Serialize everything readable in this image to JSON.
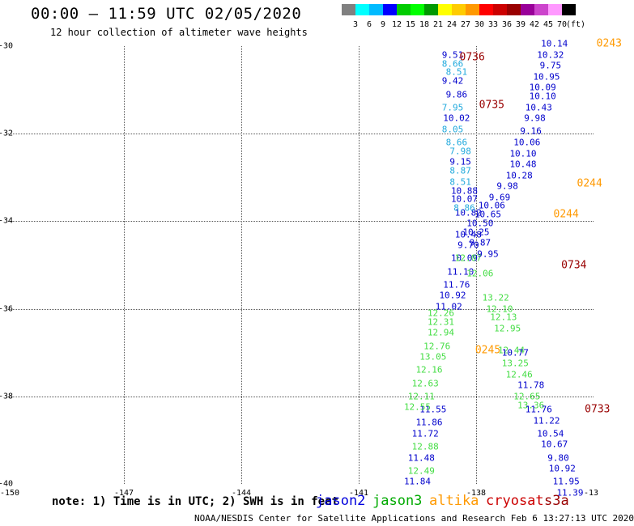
{
  "header": {
    "title": "00:00 – 11:59 UTC 02/05/2020",
    "subtitle": "12 hour collection of altimeter wave heights"
  },
  "color_scale": {
    "colors": [
      "#808080",
      "#00ffff",
      "#00bbff",
      "#0000ff",
      "#00cc00",
      "#00ff00",
      "#009900",
      "#ffff00",
      "#ffcc00",
      "#ff9900",
      "#ff0000",
      "#cc0000",
      "#990000",
      "#990099",
      "#cc44cc",
      "#ff99ff",
      "#000000"
    ],
    "labels": [
      "3",
      "6",
      "9",
      "12",
      "15",
      "18",
      "21",
      "24",
      "27",
      "30",
      "33",
      "36",
      "39",
      "42",
      "45",
      "70",
      "(ft)"
    ]
  },
  "map": {
    "lat_labels": [
      "-30",
      "-32",
      "-34",
      "-36",
      "-38",
      "-40"
    ],
    "lon_labels": [
      "-150",
      "-147",
      "-144",
      "-141",
      "-138",
      "-13"
    ]
  },
  "chart_data": {
    "type": "scatter",
    "xlabel": "",
    "ylabel": "",
    "xlim": [
      -150,
      -135
    ],
    "ylim": [
      -40,
      -30
    ],
    "series": [
      {
        "name": "jason2",
        "color": "#0000cc",
        "points": [
          {
            "x": -138.6,
            "y": -30.2,
            "v": "9.51"
          },
          {
            "x": -138.6,
            "y": -30.8,
            "v": "9.42"
          },
          {
            "x": -138.5,
            "y": -31.1,
            "v": "9.86"
          },
          {
            "x": -138.5,
            "y": -31.65,
            "v": "10.02"
          },
          {
            "x": -138.4,
            "y": -32.65,
            "v": "9.15"
          },
          {
            "x": -138.3,
            "y": -33.3,
            "v": "10.88"
          },
          {
            "x": -138.3,
            "y": -33.5,
            "v": "10.07"
          },
          {
            "x": -138.2,
            "y": -33.8,
            "v": "10.82"
          },
          {
            "x": -138.2,
            "y": -34.3,
            "v": "10.48"
          },
          {
            "x": -138.2,
            "y": -34.55,
            "v": "9.70"
          },
          {
            "x": -138.3,
            "y": -34.85,
            "v": "10.09"
          },
          {
            "x": -138.4,
            "y": -35.15,
            "v": "11.10"
          },
          {
            "x": -138.5,
            "y": -35.45,
            "v": "11.76"
          },
          {
            "x": -138.6,
            "y": -35.7,
            "v": "10.92"
          },
          {
            "x": -138.7,
            "y": -35.95,
            "v": "11.02"
          },
          {
            "x": -139.1,
            "y": -38.3,
            "v": "11.55"
          },
          {
            "x": -139.2,
            "y": -38.6,
            "v": "11.86"
          },
          {
            "x": -139.3,
            "y": -38.85,
            "v": "11.72"
          },
          {
            "x": -139.4,
            "y": -39.4,
            "v": "11.48"
          },
          {
            "x": -139.5,
            "y": -39.95,
            "v": "11.84"
          }
        ]
      },
      {
        "name": "jason3",
        "color": "#44dd44",
        "points": [
          {
            "x": -138.2,
            "y": -34.85,
            "v": "12.07"
          },
          {
            "x": -137.9,
            "y": -35.2,
            "v": "12.06"
          },
          {
            "x": -137.5,
            "y": -35.75,
            "v": "13.22"
          },
          {
            "x": -137.4,
            "y": -36.0,
            "v": "12.10"
          },
          {
            "x": -137.3,
            "y": -36.2,
            "v": "12.13"
          },
          {
            "x": -137.2,
            "y": -36.45,
            "v": "12.95"
          },
          {
            "x": -137.1,
            "y": -36.95,
            "v": "12.44"
          },
          {
            "x": -137.0,
            "y": -37.25,
            "v": "13.25"
          },
          {
            "x": -136.9,
            "y": -37.5,
            "v": "12.46"
          },
          {
            "x": -136.7,
            "y": -38.0,
            "v": "12.65"
          },
          {
            "x": -136.6,
            "y": -38.2,
            "v": "13.36"
          },
          {
            "x": -138.9,
            "y": -36.1,
            "v": "12.26"
          },
          {
            "x": -138.9,
            "y": -36.3,
            "v": "12.31"
          },
          {
            "x": -138.9,
            "y": -36.55,
            "v": "12.94"
          },
          {
            "x": -139.0,
            "y": -36.85,
            "v": "12.76"
          },
          {
            "x": -139.1,
            "y": -37.1,
            "v": "13.05"
          },
          {
            "x": -139.2,
            "y": -37.4,
            "v": "12.16"
          },
          {
            "x": -139.3,
            "y": -37.7,
            "v": "12.63"
          },
          {
            "x": -139.4,
            "y": -38.0,
            "v": "12.11"
          },
          {
            "x": -139.5,
            "y": -38.25,
            "v": "12.55"
          },
          {
            "x": -139.3,
            "y": -39.15,
            "v": "12.88"
          },
          {
            "x": -139.4,
            "y": -39.7,
            "v": "12.49"
          }
        ]
      },
      {
        "name": "altika",
        "color": "#22aadd",
        "points": [
          {
            "x": -138.6,
            "y": -30.4,
            "v": "8.66"
          },
          {
            "x": -138.5,
            "y": -30.6,
            "v": "8.51"
          },
          {
            "x": -138.6,
            "y": -31.4,
            "v": "7.95"
          },
          {
            "x": -138.6,
            "y": -31.9,
            "v": "8.05"
          },
          {
            "x": -138.5,
            "y": -32.2,
            "v": "8.66"
          },
          {
            "x": -138.4,
            "y": -32.4,
            "v": "7.98"
          },
          {
            "x": -138.4,
            "y": -32.85,
            "v": "8.87"
          },
          {
            "x": -138.4,
            "y": -33.1,
            "v": "8.51"
          },
          {
            "x": -138.3,
            "y": -33.7,
            "v": "8.86"
          }
        ]
      },
      {
        "name": "cryosat",
        "color": "#0000cc",
        "points": [
          {
            "x": -136.0,
            "y": -29.95,
            "v": "10.14"
          },
          {
            "x": -136.1,
            "y": -30.2,
            "v": "10.32"
          },
          {
            "x": -136.1,
            "y": -30.45,
            "v": "9.75"
          },
          {
            "x": -136.2,
            "y": -30.7,
            "v": "10.95"
          },
          {
            "x": -136.3,
            "y": -30.95,
            "v": "10.09"
          },
          {
            "x": -136.3,
            "y": -31.15,
            "v": "10.10"
          },
          {
            "x": -136.4,
            "y": -31.4,
            "v": "10.43"
          },
          {
            "x": -136.5,
            "y": -31.65,
            "v": "9.98"
          },
          {
            "x": -136.6,
            "y": -31.95,
            "v": "9.16"
          },
          {
            "x": -136.7,
            "y": -32.2,
            "v": "10.06"
          },
          {
            "x": -136.8,
            "y": -32.45,
            "v": "10.10"
          },
          {
            "x": -136.8,
            "y": -32.7,
            "v": "10.48"
          },
          {
            "x": -136.9,
            "y": -32.95,
            "v": "10.28"
          },
          {
            "x": -137.2,
            "y": -33.2,
            "v": "9.98"
          },
          {
            "x": -137.4,
            "y": -33.45,
            "v": "9.69"
          },
          {
            "x": -137.6,
            "y": -33.65,
            "v": "10.06"
          },
          {
            "x": -137.7,
            "y": -33.85,
            "v": "10.65"
          },
          {
            "x": -137.9,
            "y": -34.05,
            "v": "10.50"
          },
          {
            "x": -138.0,
            "y": -34.25,
            "v": "10.25"
          },
          {
            "x": -137.9,
            "y": -34.5,
            "v": "9.87"
          },
          {
            "x": -137.7,
            "y": -34.75,
            "v": "9.95"
          },
          {
            "x": -137.0,
            "y": -37.0,
            "v": "10.77"
          },
          {
            "x": -136.6,
            "y": -37.75,
            "v": "11.78"
          },
          {
            "x": -136.4,
            "y": -38.3,
            "v": "11.76"
          },
          {
            "x": -136.2,
            "y": -38.55,
            "v": "11.22"
          },
          {
            "x": -136.1,
            "y": -38.85,
            "v": "10.54"
          },
          {
            "x": -136.0,
            "y": -39.1,
            "v": "10.67"
          },
          {
            "x": -135.9,
            "y": -39.4,
            "v": "9.80"
          },
          {
            "x": -135.8,
            "y": -39.65,
            "v": "10.92"
          },
          {
            "x": -135.7,
            "y": -39.95,
            "v": "11.95"
          },
          {
            "x": -135.6,
            "y": -40.2,
            "v": "11.39"
          }
        ]
      }
    ],
    "time_labels": [
      {
        "x": -138.1,
        "y": -30.25,
        "t": "0736",
        "color": "#990000"
      },
      {
        "x": -137.6,
        "y": -31.35,
        "t": "0735",
        "color": "#990000"
      },
      {
        "x": -134.6,
        "y": -29.95,
        "t": "0243",
        "color": "#ff9900"
      },
      {
        "x": -135.1,
        "y": -33.15,
        "t": "0244",
        "color": "#ff9900"
      },
      {
        "x": -135.7,
        "y": -33.85,
        "t": "0244",
        "color": "#ff9900"
      },
      {
        "x": -135.5,
        "y": -35.0,
        "t": "0734",
        "color": "#990000"
      },
      {
        "x": -137.7,
        "y": -36.95,
        "t": "0245",
        "color": "#ff9900"
      },
      {
        "x": -134.9,
        "y": -38.3,
        "t": "0733",
        "color": "#990000"
      }
    ]
  },
  "footer": {
    "note": "note: 1) Time is in UTC; 2) SWH is in feet",
    "legend": [
      {
        "label": "jason2",
        "color": "#0000dd"
      },
      {
        "label": "jason3",
        "color": "#00aa00"
      },
      {
        "label": "altika",
        "color": "#ff9900"
      },
      {
        "label": "cryosat",
        "color": "#cc0000"
      },
      {
        "label": "s3a",
        "color": "#990000"
      }
    ],
    "credit": "NOAA/NESDIS Center for Satellite Applications and Research   Feb  6 13:27:13 UTC 2020"
  }
}
